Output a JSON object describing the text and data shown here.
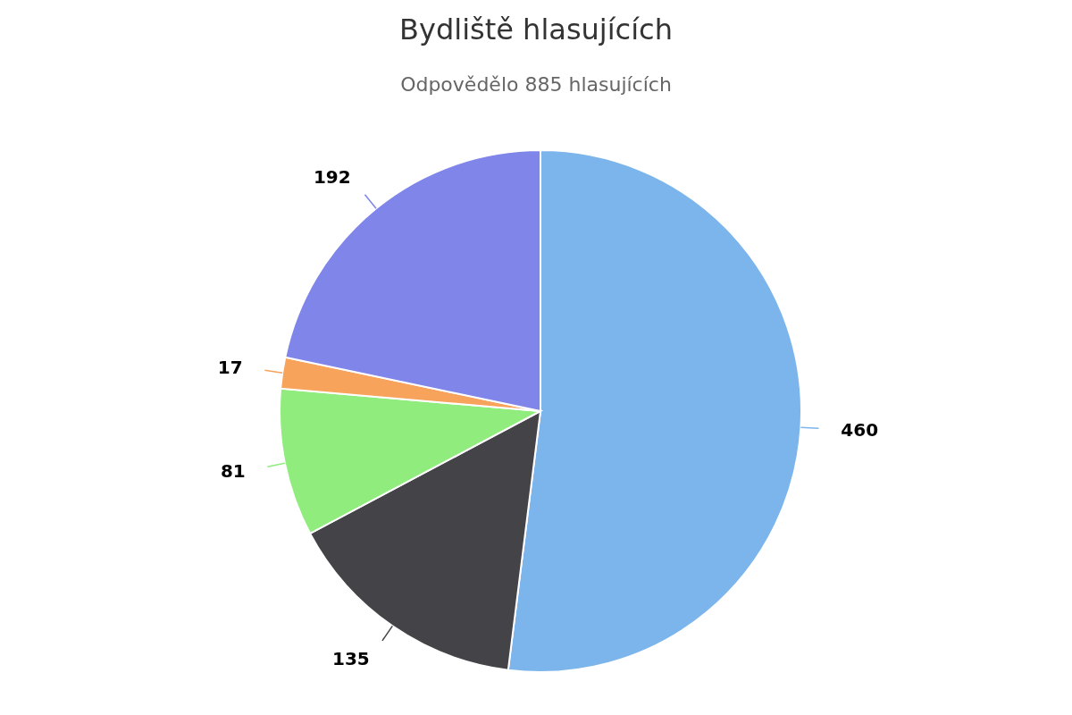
{
  "chart_data": {
    "type": "pie",
    "title": "Bydliště hlasujících",
    "subtitle": "Odpovědělo 885 hlasujících",
    "categories": [
      null,
      null,
      null,
      null,
      null
    ],
    "values": [
      460,
      135,
      81,
      17,
      192
    ],
    "colors": [
      "#7cb5ec",
      "#434348",
      "#90ed7d",
      "#f7a35c",
      "#8085e9"
    ],
    "data_labels": true,
    "legend": false
  }
}
